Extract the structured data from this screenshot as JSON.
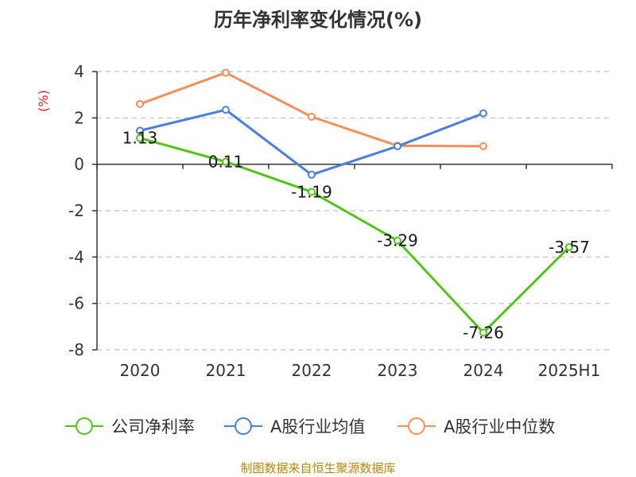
{
  "chart_data": {
    "type": "line",
    "title": "历年净利率变化情况(%)",
    "ylabel": "(%)",
    "xlabel": "",
    "categories": [
      "2020",
      "2021",
      "2022",
      "2023",
      "2024",
      "2025H1"
    ],
    "ylim": [
      -8,
      4
    ],
    "yticks": [
      4,
      2,
      0,
      -2,
      -4,
      -6,
      -8
    ],
    "grid": true,
    "legend_position": "bottom",
    "series": [
      {
        "name": "公司净利率",
        "color": "#52c41a",
        "values": [
          1.13,
          0.11,
          -1.19,
          -3.29,
          -7.26,
          -3.57
        ],
        "labels": [
          "1.13",
          "0.11",
          "-1.19",
          "-3.29",
          "-7.26",
          "-3.57"
        ]
      },
      {
        "name": "A股行业均值",
        "color": "#4a7fdc",
        "values": [
          1.45,
          2.35,
          -0.45,
          0.78,
          2.2,
          null
        ]
      },
      {
        "name": "A股行业中位数",
        "color": "#f58f5a",
        "values": [
          2.6,
          3.95,
          2.05,
          0.8,
          0.78,
          null
        ]
      }
    ],
    "source": "制图数据来自恒生聚源数据库"
  }
}
